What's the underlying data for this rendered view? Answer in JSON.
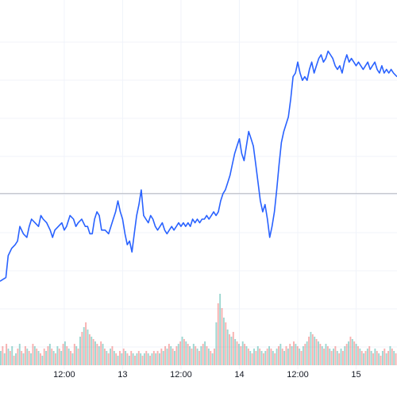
{
  "chart_data": {
    "type": "line",
    "title": "",
    "xlabel": "",
    "ylabel": "",
    "x_tick_labels": [
      "12:00",
      "13",
      "12:00",
      "14",
      "12:00",
      "15"
    ],
    "x_tick_positions": [
      0.5,
      1.0,
      1.5,
      2.0,
      2.5,
      3.0
    ],
    "x_range": [
      -0.05,
      3.35
    ],
    "y_range": [
      0,
      100
    ],
    "grid": true,
    "legend": "none",
    "horizontal_reference_line": 47,
    "series": [
      {
        "color": "#2962ff",
        "points": [
          [
            -0.05,
            23
          ],
          [
            0.0,
            24
          ],
          [
            0.02,
            30
          ],
          [
            0.05,
            32
          ],
          [
            0.08,
            33
          ],
          [
            0.1,
            34
          ],
          [
            0.12,
            38
          ],
          [
            0.15,
            36
          ],
          [
            0.18,
            35
          ],
          [
            0.2,
            38
          ],
          [
            0.22,
            40
          ],
          [
            0.25,
            39
          ],
          [
            0.28,
            38
          ],
          [
            0.3,
            41
          ],
          [
            0.32,
            40
          ],
          [
            0.35,
            39
          ],
          [
            0.38,
            37
          ],
          [
            0.4,
            35
          ],
          [
            0.42,
            37
          ],
          [
            0.45,
            38
          ],
          [
            0.48,
            39
          ],
          [
            0.5,
            37
          ],
          [
            0.52,
            38
          ],
          [
            0.55,
            41
          ],
          [
            0.58,
            40
          ],
          [
            0.6,
            38
          ],
          [
            0.62,
            39
          ],
          [
            0.65,
            40
          ],
          [
            0.68,
            38
          ],
          [
            0.7,
            38
          ],
          [
            0.72,
            36
          ],
          [
            0.74,
            36
          ],
          [
            0.76,
            40
          ],
          [
            0.78,
            42
          ],
          [
            0.8,
            41
          ],
          [
            0.82,
            37
          ],
          [
            0.85,
            37
          ],
          [
            0.88,
            36
          ],
          [
            0.9,
            38
          ],
          [
            0.92,
            40
          ],
          [
            0.94,
            42
          ],
          [
            0.96,
            45
          ],
          [
            0.98,
            42
          ],
          [
            1.0,
            40
          ],
          [
            1.02,
            36
          ],
          [
            1.04,
            33
          ],
          [
            1.06,
            34
          ],
          [
            1.08,
            31
          ],
          [
            1.1,
            36
          ],
          [
            1.12,
            41
          ],
          [
            1.14,
            44
          ],
          [
            1.16,
            48
          ],
          [
            1.18,
            41
          ],
          [
            1.2,
            40
          ],
          [
            1.22,
            39
          ],
          [
            1.24,
            41
          ],
          [
            1.26,
            40
          ],
          [
            1.28,
            38
          ],
          [
            1.3,
            37
          ],
          [
            1.32,
            38
          ],
          [
            1.34,
            39
          ],
          [
            1.36,
            37
          ],
          [
            1.38,
            36
          ],
          [
            1.4,
            37
          ],
          [
            1.42,
            38
          ],
          [
            1.44,
            37
          ],
          [
            1.46,
            38
          ],
          [
            1.48,
            39
          ],
          [
            1.5,
            38
          ],
          [
            1.52,
            39
          ],
          [
            1.54,
            38
          ],
          [
            1.56,
            39
          ],
          [
            1.58,
            38
          ],
          [
            1.6,
            40
          ],
          [
            1.62,
            39
          ],
          [
            1.64,
            40
          ],
          [
            1.66,
            39
          ],
          [
            1.68,
            40
          ],
          [
            1.7,
            40
          ],
          [
            1.72,
            41
          ],
          [
            1.74,
            40
          ],
          [
            1.76,
            41
          ],
          [
            1.78,
            42
          ],
          [
            1.8,
            41
          ],
          [
            1.82,
            42
          ],
          [
            1.84,
            45
          ],
          [
            1.86,
            47
          ],
          [
            1.88,
            48
          ],
          [
            1.9,
            50
          ],
          [
            1.92,
            52
          ],
          [
            1.94,
            55
          ],
          [
            1.96,
            58
          ],
          [
            1.98,
            60
          ],
          [
            2.0,
            62
          ],
          [
            2.02,
            58
          ],
          [
            2.04,
            56
          ],
          [
            2.06,
            60
          ],
          [
            2.08,
            64
          ],
          [
            2.1,
            62
          ],
          [
            2.12,
            60
          ],
          [
            2.14,
            55
          ],
          [
            2.16,
            50
          ],
          [
            2.18,
            45
          ],
          [
            2.2,
            42
          ],
          [
            2.22,
            44
          ],
          [
            2.24,
            40
          ],
          [
            2.26,
            35
          ],
          [
            2.28,
            38
          ],
          [
            2.3,
            42
          ],
          [
            2.32,
            48
          ],
          [
            2.34,
            55
          ],
          [
            2.36,
            61
          ],
          [
            2.38,
            64
          ],
          [
            2.4,
            66
          ],
          [
            2.42,
            68
          ],
          [
            2.44,
            73
          ],
          [
            2.46,
            79
          ],
          [
            2.48,
            80
          ],
          [
            2.5,
            83
          ],
          [
            2.52,
            80
          ],
          [
            2.54,
            78
          ],
          [
            2.56,
            79
          ],
          [
            2.58,
            78
          ],
          [
            2.6,
            81
          ],
          [
            2.62,
            83
          ],
          [
            2.64,
            80
          ],
          [
            2.66,
            82
          ],
          [
            2.68,
            84
          ],
          [
            2.7,
            85
          ],
          [
            2.72,
            83
          ],
          [
            2.74,
            84
          ],
          [
            2.76,
            86
          ],
          [
            2.78,
            85
          ],
          [
            2.8,
            84
          ],
          [
            2.82,
            82
          ],
          [
            2.84,
            81
          ],
          [
            2.86,
            82
          ],
          [
            2.88,
            80
          ],
          [
            2.9,
            83
          ],
          [
            2.92,
            85
          ],
          [
            2.94,
            83
          ],
          [
            2.96,
            84
          ],
          [
            2.98,
            83
          ],
          [
            3.0,
            82
          ],
          [
            3.02,
            83
          ],
          [
            3.04,
            82
          ],
          [
            3.06,
            81
          ],
          [
            3.08,
            82
          ],
          [
            3.1,
            83
          ],
          [
            3.12,
            81
          ],
          [
            3.14,
            82
          ],
          [
            3.16,
            83
          ],
          [
            3.18,
            81
          ],
          [
            3.2,
            80
          ],
          [
            3.22,
            82
          ],
          [
            3.24,
            80
          ],
          [
            3.26,
            81
          ],
          [
            3.28,
            80
          ],
          [
            3.3,
            81
          ],
          [
            3.32,
            80
          ],
          [
            3.35,
            79
          ]
        ]
      }
    ],
    "volume_bars": {
      "colors": [
        "#26a69a",
        "#ef5350"
      ],
      "values": [
        6,
        8,
        5,
        9,
        7,
        6,
        8,
        4,
        5,
        7,
        9,
        6,
        5,
        8,
        7,
        6,
        5,
        9,
        8,
        7,
        6,
        5,
        4,
        7,
        6,
        8,
        9,
        7,
        6,
        5,
        8,
        7,
        6,
        9,
        10,
        8,
        7,
        6,
        5,
        9,
        8,
        7,
        12,
        14,
        16,
        18,
        15,
        13,
        12,
        11,
        10,
        9,
        8,
        10,
        9,
        7,
        6,
        5,
        7,
        8,
        6,
        5,
        4,
        6,
        5,
        7,
        6,
        5,
        4,
        6,
        5,
        4,
        5,
        6,
        5,
        4,
        5,
        6,
        5,
        4,
        5,
        6,
        5,
        6,
        5,
        7,
        6,
        8,
        7,
        9,
        8,
        7,
        6,
        8,
        9,
        10,
        12,
        11,
        10,
        9,
        8,
        7,
        9,
        8,
        7,
        6,
        8,
        9,
        10,
        8,
        7,
        6,
        5,
        7,
        18,
        26,
        30,
        24,
        20,
        18,
        15,
        13,
        12,
        14,
        11,
        10,
        9,
        8,
        10,
        9,
        8,
        7,
        6,
        5,
        7,
        6,
        8,
        7,
        6,
        5,
        6,
        7,
        8,
        7,
        6,
        5,
        7,
        8,
        9,
        7,
        6,
        8,
        7,
        9,
        8,
        10,
        9,
        8,
        7,
        6,
        8,
        9,
        10,
        12,
        14,
        13,
        12,
        11,
        10,
        9,
        8,
        7,
        9,
        8,
        7,
        6,
        7,
        8,
        6,
        5,
        7,
        6,
        8,
        9,
        10,
        12,
        11,
        10,
        9,
        8,
        7,
        6,
        5,
        6,
        7,
        8,
        6,
        5,
        7,
        6,
        5,
        4,
        6,
        7,
        5,
        6,
        8,
        7,
        6,
        5
      ]
    }
  }
}
